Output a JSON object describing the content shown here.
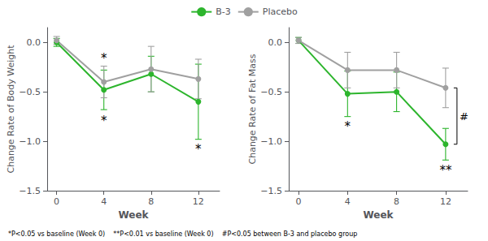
{
  "chart_data": [
    {
      "type": "line",
      "xlabel": "Week",
      "ylabel": "Change Rate of Body Weight",
      "x": [
        0,
        4,
        8,
        12
      ],
      "xlim": [
        -0.8,
        13.8
      ],
      "xticks": [
        0,
        4,
        8,
        12
      ],
      "ylim": [
        -1.5,
        0.15
      ],
      "yticks": [
        {
          "value": 0.0,
          "label": "0.0"
        },
        {
          "value": -0.5,
          "label": "−0.5"
        },
        {
          "value": -1.0,
          "label": "−1.0"
        },
        {
          "value": -1.5,
          "label": "−1.5"
        }
      ],
      "grid": false,
      "legend": "top",
      "series": [
        {
          "name": "B-3",
          "color": "#2db52d",
          "marker": "circle",
          "values": [
            0.0,
            -0.48,
            -0.32,
            -0.6
          ],
          "errors": [
            0.04,
            0.2,
            0.18,
            0.38
          ]
        },
        {
          "name": "Placebo",
          "color": "#a0a0a0",
          "marker": "circle",
          "values": [
            0.02,
            -0.4,
            -0.27,
            -0.37
          ],
          "errors": [
            0.04,
            0.16,
            0.23,
            0.2
          ]
        }
      ],
      "annotations": [
        {
          "text": "*",
          "x": 4.0,
          "y": -0.22
        },
        {
          "text": "*",
          "x": 4.0,
          "y": -0.73
        },
        {
          "text": "*",
          "x": 12.0,
          "y": -1.02
        }
      ],
      "footnote": "*P<0.05 vs baseline (Week 0)    **P<0.01 vs baseline (Week 0)    #P<0.05 between B-3 and placebo group"
    },
    {
      "type": "line",
      "xlabel": "Week",
      "ylabel": "Change Rate of Fat Mass",
      "x": [
        0,
        4,
        8,
        12
      ],
      "xlim": [
        -0.8,
        13.8
      ],
      "xticks": [
        0,
        4,
        8,
        12
      ],
      "ylim": [
        -1.5,
        0.15
      ],
      "yticks": [
        {
          "value": 0.0,
          "label": "0.0"
        },
        {
          "value": -0.5,
          "label": "−0.5"
        },
        {
          "value": -1.0,
          "label": "−1.0"
        },
        {
          "value": -1.5,
          "label": "−1.5"
        }
      ],
      "grid": false,
      "legend": "top",
      "series": [
        {
          "name": "B-3",
          "color": "#2db52d",
          "marker": "circle",
          "values": [
            0.02,
            -0.52,
            -0.5,
            -1.03
          ],
          "errors": [
            0.03,
            0.23,
            0.2,
            0.16
          ]
        },
        {
          "name": "Placebo",
          "color": "#a0a0a0",
          "marker": "circle",
          "values": [
            0.02,
            -0.28,
            -0.28,
            -0.46
          ],
          "errors": [
            0.03,
            0.18,
            0.18,
            0.2
          ]
        }
      ],
      "annotations": [
        {
          "text": "*",
          "x": 4.0,
          "y": -0.79
        },
        {
          "text": "**",
          "x": 12.0,
          "y": -1.23
        },
        {
          "text": "#",
          "x": 12.0,
          "y": [
            -1.03,
            -0.46
          ]
        }
      ]
    }
  ]
}
